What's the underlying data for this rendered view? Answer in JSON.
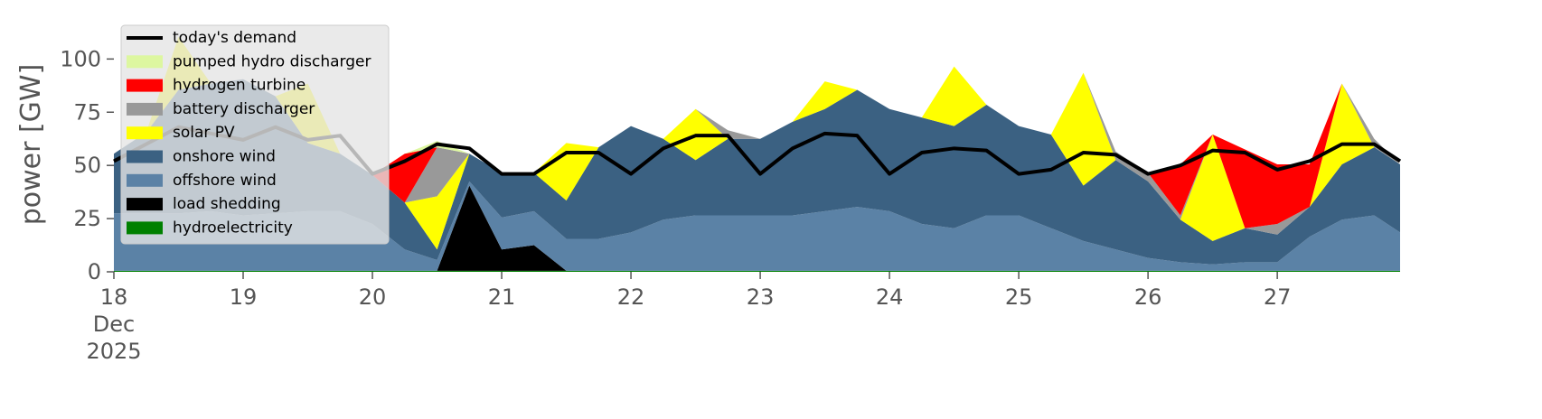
{
  "chart_data": {
    "type": "stacked-area",
    "y_label": "power [GW]",
    "x": [
      18,
      18.25,
      18.5,
      18.75,
      19,
      19.25,
      19.5,
      19.75,
      20,
      20.25,
      20.5,
      20.75,
      21,
      21.25,
      21.5,
      21.75,
      22,
      22.25,
      22.5,
      22.75,
      23,
      23.25,
      23.5,
      23.75,
      24,
      24.25,
      24.5,
      24.75,
      25,
      25.25,
      25.5,
      25.75,
      26,
      26.25,
      26.5,
      26.75,
      27,
      27.25,
      27.5,
      27.75,
      27.95
    ],
    "xlim": [
      18,
      27.95
    ],
    "xticks": [
      {
        "value": 18,
        "label": "18\nDec\n2025"
      },
      19,
      20,
      21,
      22,
      23,
      24,
      25,
      26,
      27
    ],
    "ylim": [
      0,
      115
    ],
    "yticks": [
      0,
      25,
      50,
      75,
      100
    ],
    "legend": "upper left",
    "series": [
      {
        "name": "hydroelectricity",
        "color": "#008000",
        "values": [
          0.5,
          0.5,
          0.5,
          0.5,
          0.5,
          0.5,
          0.5,
          0.5,
          0.5,
          0.5,
          0.5,
          0.5,
          0.5,
          0.5,
          0.5,
          0.5,
          0.5,
          0.5,
          0.5,
          0.5,
          0.5,
          0.5,
          0.5,
          0.5,
          0.5,
          0.5,
          0.5,
          0.5,
          0.5,
          0.5,
          0.5,
          0.5,
          0.5,
          0.5,
          0.5,
          0.5,
          0.5,
          0.5,
          0.5,
          0.5,
          0.5
        ]
      },
      {
        "name": "load shedding",
        "color": "#000000",
        "values": [
          0,
          0,
          0,
          0,
          0,
          0,
          0,
          0,
          0,
          0,
          0,
          40,
          10,
          12,
          0,
          0,
          0,
          0,
          0,
          0,
          0,
          0,
          0,
          0,
          0,
          0,
          0,
          0,
          0,
          0,
          0,
          0,
          0,
          0,
          0,
          0,
          0,
          0,
          0,
          0,
          0
        ]
      },
      {
        "name": "offshore wind",
        "color": "#5b82a6",
        "values": [
          27,
          27,
          27,
          28,
          26,
          27,
          28,
          28,
          22,
          10,
          5,
          2,
          15,
          16,
          15,
          15,
          18,
          24,
          26,
          26,
          26,
          26,
          28,
          30,
          28,
          22,
          20,
          26,
          26,
          20,
          14,
          10,
          6,
          4,
          3,
          4,
          4,
          16,
          24,
          26,
          18
        ]
      },
      {
        "name": "onshore wind",
        "color": "#3b6182",
        "values": [
          28,
          38,
          58,
          60,
          64,
          55,
          32,
          27,
          23,
          22,
          5,
          13,
          21,
          18,
          18,
          43,
          50,
          38,
          26,
          36,
          36,
          44,
          48,
          55,
          48,
          50,
          48,
          52,
          42,
          44,
          26,
          42,
          36,
          20,
          11,
          16,
          13,
          14,
          26,
          32,
          32
        ]
      },
      {
        "name": "solar PV",
        "color": "#ffff00",
        "values": [
          0,
          0,
          25,
          0,
          0,
          0,
          28,
          0,
          0,
          0,
          25,
          0,
          0,
          0,
          27,
          0,
          0,
          0,
          24,
          0,
          0,
          0,
          13,
          0,
          0,
          0,
          28,
          0,
          0,
          0,
          53,
          0,
          0,
          0,
          50,
          0,
          0,
          0,
          38,
          0,
          0
        ]
      },
      {
        "name": "battery discharger",
        "color": "#999999",
        "values": [
          0,
          0,
          0,
          0,
          0,
          0,
          0,
          0,
          0,
          0,
          23,
          0,
          0,
          0,
          0,
          0,
          0,
          0,
          0,
          4,
          0,
          0,
          0,
          0,
          0,
          0,
          0,
          0,
          0,
          0,
          0,
          4,
          4,
          2,
          0,
          0,
          5,
          0,
          0,
          4,
          0
        ]
      },
      {
        "name": "hydrogen turbine",
        "color": "#ff0000",
        "values": [
          0,
          0,
          0,
          0,
          0,
          0,
          0,
          0,
          0,
          23,
          0,
          0,
          0,
          0,
          0,
          0,
          0,
          0,
          0,
          0,
          0,
          0,
          0,
          0,
          0,
          0,
          0,
          0,
          0,
          0,
          0,
          0,
          0,
          24,
          0,
          37,
          28,
          20,
          0,
          0,
          0
        ]
      },
      {
        "name": "pumped hydro discharger",
        "color": "#ddf7a0",
        "values": [
          0,
          0,
          0,
          0,
          0,
          0,
          0,
          0,
          0,
          0,
          3,
          0,
          0,
          0,
          0,
          0,
          0,
          0,
          0,
          0,
          0,
          0,
          0,
          0,
          0,
          0,
          0,
          0,
          0,
          0,
          0,
          0,
          0,
          0,
          0,
          0,
          0,
          0,
          0,
          0,
          0
        ]
      }
    ],
    "lines": [
      {
        "name": "today's demand",
        "color": "#000000",
        "values": [
          52,
          60,
          68,
          65,
          62,
          68,
          62,
          64,
          46,
          52,
          60,
          58,
          46,
          46,
          56,
          56,
          46,
          58,
          64,
          64,
          46,
          58,
          65,
          64,
          46,
          56,
          58,
          57,
          46,
          48,
          56,
          55,
          46,
          50,
          57,
          56,
          48,
          52,
          60,
          60,
          52
        ]
      }
    ]
  }
}
